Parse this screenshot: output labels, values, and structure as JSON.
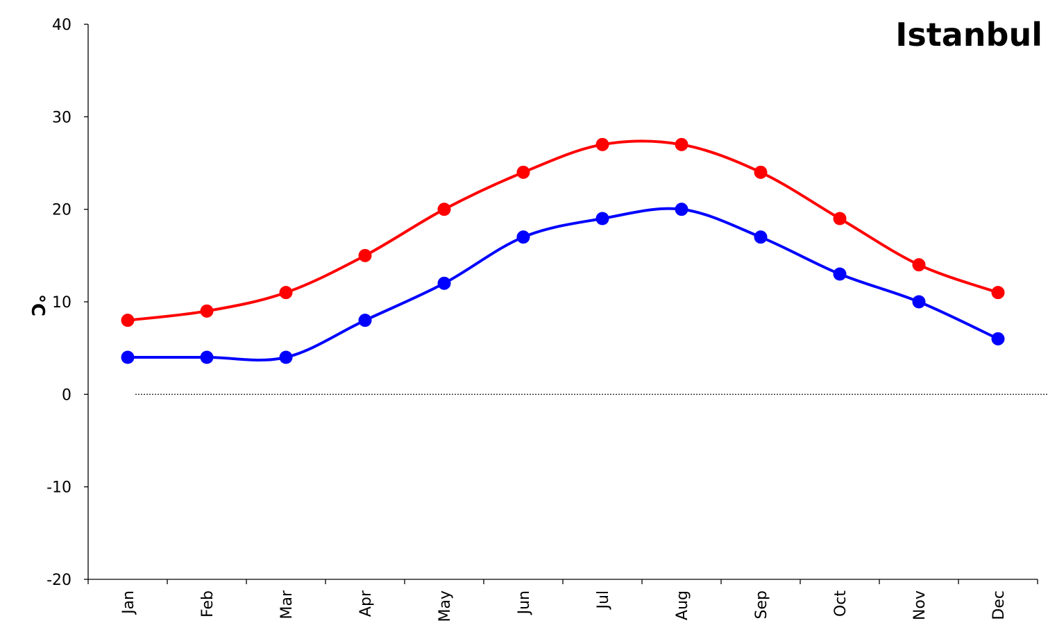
{
  "chart_data": {
    "type": "line",
    "title": "Istanbul",
    "ylabel": "°C",
    "xlabel": "",
    "categories": [
      "Jan",
      "Feb",
      "Mar",
      "Apr",
      "May",
      "Jun",
      "Jul",
      "Aug",
      "Sep",
      "Oct",
      "Nov",
      "Dec"
    ],
    "ylim": [
      -20,
      40
    ],
    "yticks": [
      "-20",
      "-10",
      "0",
      "10",
      "20",
      "30",
      "40"
    ],
    "grid": false,
    "zero_line": true,
    "smooth": true,
    "legend": "none",
    "series": [
      {
        "values": [
          8,
          9,
          11,
          15,
          20,
          24,
          27,
          27,
          24,
          19,
          14,
          11
        ],
        "color": "#ff0000"
      },
      {
        "values": [
          4,
          4,
          4,
          8,
          12,
          17,
          19,
          20,
          17,
          13,
          10,
          6
        ],
        "color": "#0000ff"
      }
    ]
  }
}
